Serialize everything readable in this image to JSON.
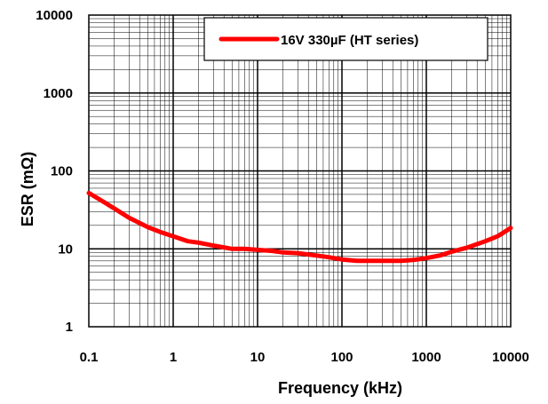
{
  "chart_data": {
    "type": "line",
    "xlabel": "Frequency  (kHz)",
    "ylabel": "ESR  (mΩ)",
    "x_scale": "log",
    "y_scale": "log",
    "xlim": [
      0.1,
      10000
    ],
    "ylim": [
      1,
      10000
    ],
    "x_ticks": [
      "0.1",
      "1",
      "10",
      "100",
      "1000",
      "10000"
    ],
    "y_ticks": [
      "1",
      "10",
      "100",
      "1000",
      "10000"
    ],
    "grid": true,
    "legend_position": "top-right",
    "series": [
      {
        "name": "16V 330µF (HT series)",
        "color": "#ff0000",
        "x": [
          0.1,
          0.15,
          0.2,
          0.3,
          0.5,
          0.7,
          1,
          1.5,
          2,
          3,
          5,
          7,
          10,
          15,
          20,
          30,
          50,
          70,
          100,
          150,
          200,
          300,
          500,
          700,
          1000,
          1500,
          2000,
          3000,
          5000,
          7000,
          10000
        ],
        "values": [
          52,
          40,
          33,
          25,
          19,
          16.5,
          14.5,
          12.5,
          12,
          11,
          10,
          10,
          9.7,
          9.4,
          9,
          8.8,
          8.2,
          7.8,
          7.3,
          7,
          7,
          7,
          7,
          7.2,
          7.6,
          8.3,
          9.2,
          10.3,
          12.5,
          14.5,
          18.5
        ]
      }
    ]
  }
}
